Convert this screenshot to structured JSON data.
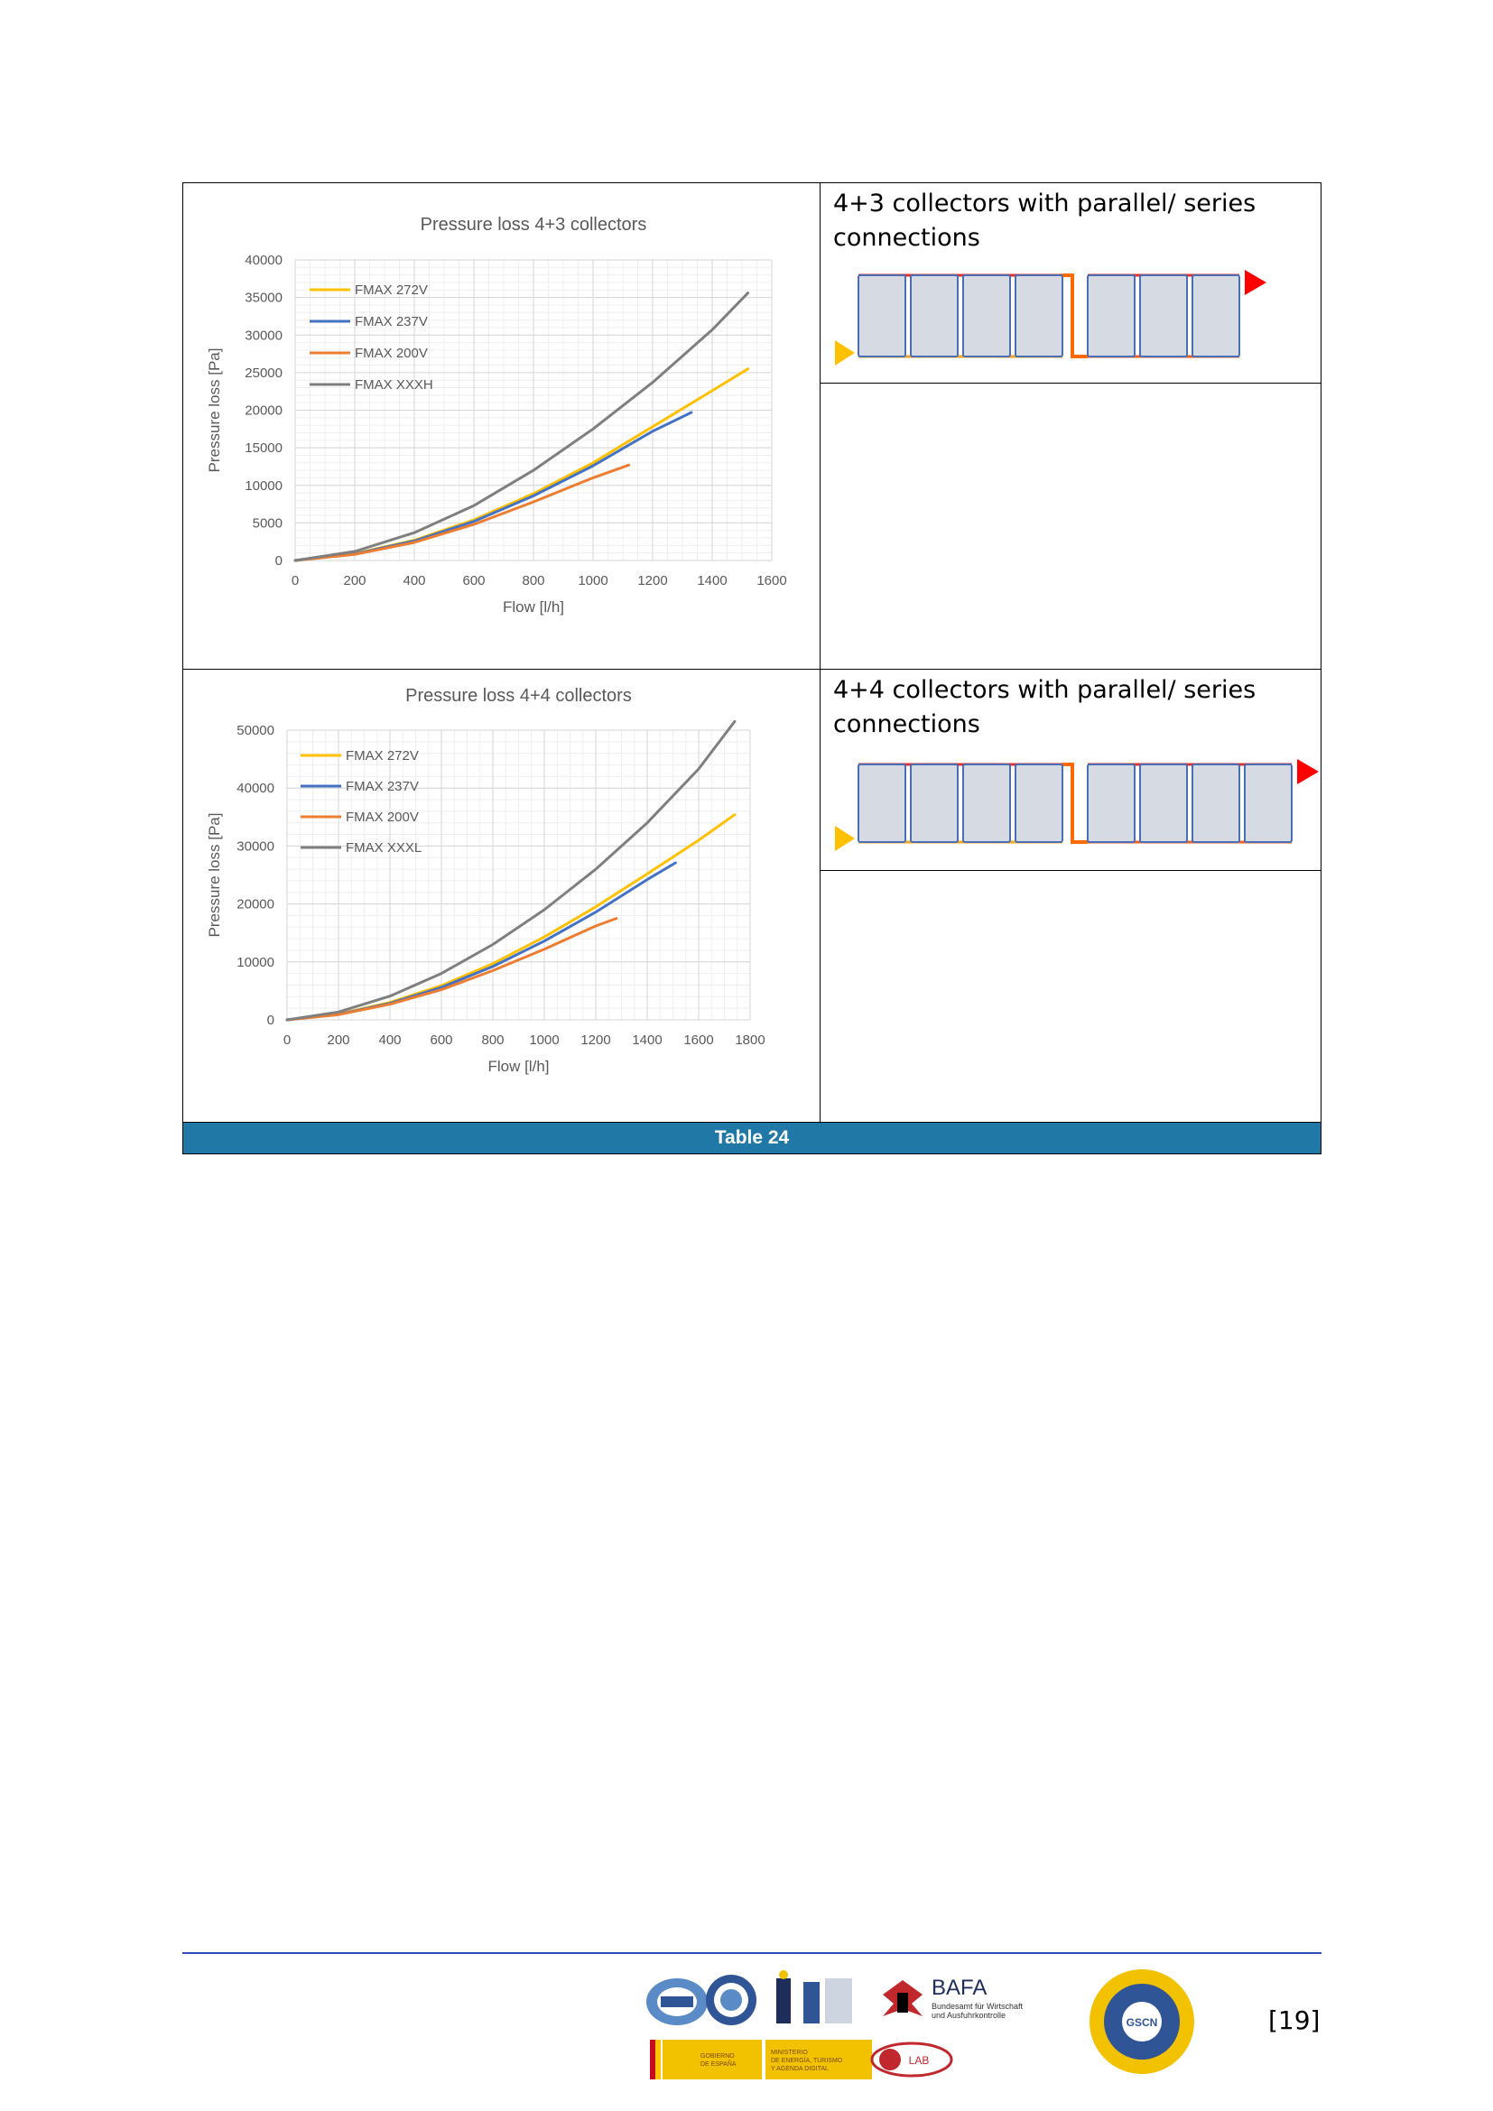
{
  "table": {
    "caption": "Table 24",
    "rows": [
      {
        "description": "4+3 collectors with parallel/ series connections",
        "collectors_left": 4,
        "collectors_right": 3
      },
      {
        "description": "4+4 collectors with parallel/ series connections",
        "collectors_left": 4,
        "collectors_right": 4
      }
    ]
  },
  "chart_data": [
    {
      "type": "line",
      "title": "Pressure loss 4+3 collectors",
      "xlabel": "Flow [l/h]",
      "ylabel": "Pressure loss [Pa]",
      "xlim": [
        0,
        1600
      ],
      "ylim": [
        0,
        40000
      ],
      "xticks": [
        "0",
        "200",
        "400",
        "600",
        "800",
        "1000",
        "1200",
        "1400",
        "1600"
      ],
      "yticks": [
        "0",
        "5000",
        "10000",
        "15000",
        "20000",
        "25000",
        "30000",
        "35000",
        "40000"
      ],
      "grid": true,
      "legend_position": "top-left",
      "series": [
        {
          "name": "FMAX 272V",
          "color": "#ffc000",
          "x": [
            0,
            200,
            400,
            600,
            800,
            1000,
            1200,
            1400,
            1520
          ],
          "y": [
            0,
            900,
            2700,
            5400,
            8900,
            13000,
            17800,
            22600,
            25500
          ]
        },
        {
          "name": "FMAX 237V",
          "color": "#4472c4",
          "x": [
            0,
            200,
            400,
            600,
            800,
            1000,
            1200,
            1330
          ],
          "y": [
            0,
            850,
            2600,
            5200,
            8600,
            12600,
            17200,
            19700
          ]
        },
        {
          "name": "FMAX 200V",
          "color": "#ed7d31",
          "x": [
            0,
            200,
            400,
            600,
            800,
            1000,
            1120
          ],
          "y": [
            0,
            800,
            2400,
            4800,
            7800,
            11000,
            12700
          ]
        },
        {
          "name": "FMAX XXXH",
          "color": "#7f7f7f",
          "x": [
            0,
            200,
            400,
            600,
            800,
            1000,
            1200,
            1400,
            1520
          ],
          "y": [
            0,
            1200,
            3700,
            7300,
            12000,
            17500,
            23700,
            30700,
            35600
          ]
        }
      ]
    },
    {
      "type": "line",
      "title": "Pressure loss 4+4 collectors",
      "xlabel": "Flow [l/h]",
      "ylabel": "Pressure loss [Pa]",
      "xlim": [
        0,
        1800
      ],
      "ylim": [
        0,
        50000
      ],
      "xticks": [
        "0",
        "200",
        "400",
        "600",
        "800",
        "1000",
        "1200",
        "1400",
        "1600",
        "1800"
      ],
      "yticks": [
        "0",
        "10000",
        "20000",
        "30000",
        "40000",
        "50000"
      ],
      "grid": true,
      "legend_position": "top-left",
      "series": [
        {
          "name": "FMAX 272V",
          "color": "#ffc000",
          "x": [
            0,
            200,
            400,
            600,
            800,
            1000,
            1200,
            1400,
            1600,
            1740
          ],
          "y": [
            0,
            1000,
            3000,
            5900,
            9700,
            14300,
            19500,
            25200,
            31000,
            35400
          ]
        },
        {
          "name": "FMAX 237V",
          "color": "#4472c4",
          "x": [
            0,
            200,
            400,
            600,
            800,
            1000,
            1200,
            1400,
            1510
          ],
          "y": [
            0,
            950,
            2850,
            5600,
            9200,
            13600,
            18600,
            24200,
            27100
          ]
        },
        {
          "name": "FMAX 200V",
          "color": "#ed7d31",
          "x": [
            0,
            200,
            400,
            600,
            800,
            1000,
            1200,
            1280
          ],
          "y": [
            0,
            900,
            2700,
            5200,
            8500,
            12200,
            16200,
            17500
          ]
        },
        {
          "name": "FMAX XXXL",
          "color": "#7f7f7f",
          "x": [
            0,
            200,
            400,
            600,
            800,
            1000,
            1200,
            1400,
            1600,
            1740
          ],
          "y": [
            0,
            1350,
            4100,
            8000,
            13000,
            19000,
            26000,
            34000,
            43300,
            51500
          ]
        }
      ]
    }
  ],
  "footer": {
    "page_number": "[19]",
    "logos": {
      "bafa_title": "BAFA",
      "bafa_subtitle_1": "Bundesamt für Wirtschaft",
      "bafa_subtitle_2": "und Ausfuhrkontrolle",
      "gov_spain_1": "GOBIERNO",
      "gov_spain_2": "DE ESPAÑA",
      "ministry_1": "MINISTERIO",
      "ministry_2": "DE ENERGÍA, TURISMO",
      "ministry_3": "Y AGENDA DIGITAL",
      "gscn": "GSCN",
      "tuv": "LAB"
    }
  }
}
